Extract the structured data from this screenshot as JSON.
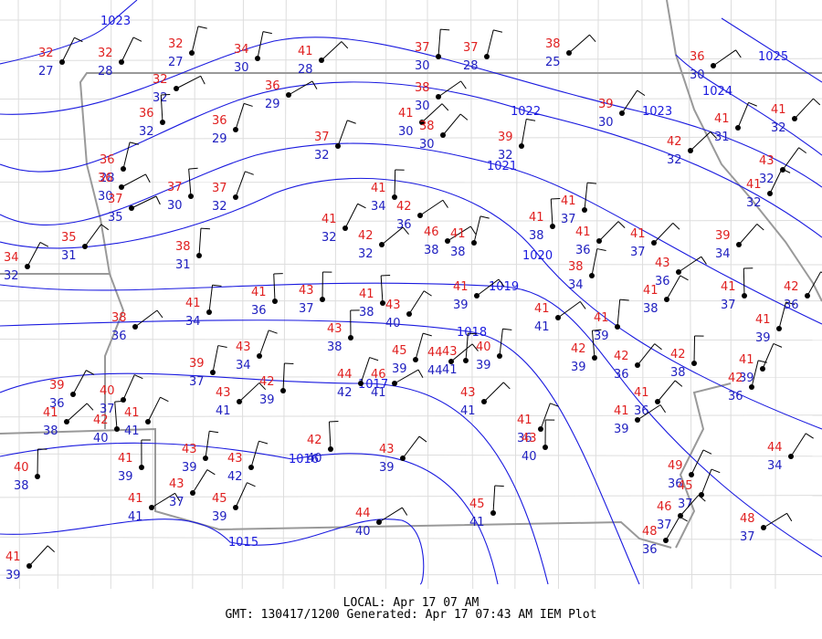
{
  "isobars": [
    {
      "label": "1023"
    },
    {
      "label": "1025"
    },
    {
      "label": "1024"
    },
    {
      "label": "1023"
    },
    {
      "label": "1022"
    },
    {
      "label": "1021"
    },
    {
      "label": "1020"
    },
    {
      "label": "1019"
    },
    {
      "label": "1018"
    },
    {
      "label": "1017"
    },
    {
      "label": "1016"
    },
    {
      "label": "1015"
    }
  ],
  "stations": [
    {
      "temp": 32,
      "dew": 27
    },
    {
      "temp": 32,
      "dew": 28
    },
    {
      "temp": 32,
      "dew": 27
    },
    {
      "temp": 34,
      "dew": 30
    },
    {
      "temp": 41,
      "dew": 28
    },
    {
      "temp": 37,
      "dew": 30
    },
    {
      "temp": 37,
      "dew": 28
    },
    {
      "temp": 38,
      "dew": 25
    },
    {
      "temp": 36,
      "dew": 30
    },
    {
      "temp": 32,
      "dew": 32
    },
    {
      "temp": 36,
      "dew": 29
    },
    {
      "temp": 38,
      "dew": 30
    },
    {
      "temp": 41,
      "dew": 30
    },
    {
      "temp": 38,
      "dew": 30
    },
    {
      "temp": 39,
      "dew": 30
    },
    {
      "temp": 36,
      "dew": 32
    },
    {
      "temp": 36,
      "dew": 29
    },
    {
      "temp": 37,
      "dew": 32
    },
    {
      "temp": 39,
      "dew": 32
    },
    {
      "temp": 41,
      "dew": 31
    },
    {
      "temp": 41,
      "dew": 32
    },
    {
      "temp": 42,
      "dew": 32
    },
    {
      "temp": 36,
      "dew": 28
    },
    {
      "temp": 36,
      "dew": 30
    },
    {
      "temp": 37,
      "dew": 30
    },
    {
      "temp": 37,
      "dew": 32
    },
    {
      "temp": 43,
      "dew": 32
    },
    {
      "temp": 41,
      "dew": 32
    },
    {
      "temp": 41,
      "dew": 34
    },
    {
      "temp": 37,
      "dew": 35
    },
    {
      "temp": 41,
      "dew": 32
    },
    {
      "temp": 42,
      "dew": 36
    },
    {
      "temp": 35,
      "dew": 31
    },
    {
      "temp": 34,
      "dew": 32
    },
    {
      "temp": 38,
      "dew": 31
    },
    {
      "temp": 42,
      "dew": 32
    },
    {
      "temp": 46,
      "dew": 38
    },
    {
      "temp": 41,
      "dew": 38
    },
    {
      "temp": 41,
      "dew": 38
    },
    {
      "temp": 41,
      "dew": 37
    },
    {
      "temp": 41,
      "dew": 36
    },
    {
      "temp": 41,
      "dew": 37
    },
    {
      "temp": 39,
      "dew": 34
    },
    {
      "temp": 43,
      "dew": 36
    },
    {
      "temp": 38,
      "dew": 34
    },
    {
      "temp": 41,
      "dew": 39
    },
    {
      "temp": 41,
      "dew": 34
    },
    {
      "temp": 41,
      "dew": 36
    },
    {
      "temp": 43,
      "dew": 37
    },
    {
      "temp": 41,
      "dew": 38
    },
    {
      "temp": 43,
      "dew": 40
    },
    {
      "temp": 38,
      "dew": 36
    },
    {
      "temp": 41,
      "dew": 41
    },
    {
      "temp": 41,
      "dew": 39
    },
    {
      "temp": 41,
      "dew": 38
    },
    {
      "temp": 41,
      "dew": 37
    },
    {
      "temp": 41,
      "dew": 39
    },
    {
      "temp": 42,
      "dew": 36
    },
    {
      "temp": 43,
      "dew": 38
    },
    {
      "temp": 43,
      "dew": 34
    },
    {
      "temp": 39,
      "dew": 37
    },
    {
      "temp": 45,
      "dew": 39
    },
    {
      "temp": 44,
      "dew": 44
    },
    {
      "temp": 43,
      "dew": 41
    },
    {
      "temp": 40,
      "dew": 39
    },
    {
      "temp": 42,
      "dew": 39
    },
    {
      "temp": 42,
      "dew": 36
    },
    {
      "temp": 42,
      "dew": 38
    },
    {
      "temp": 41,
      "dew": 39
    },
    {
      "temp": 42,
      "dew": 39
    },
    {
      "temp": 39,
      "dew": 36
    },
    {
      "temp": 40,
      "dew": 37
    },
    {
      "temp": 42,
      "dew": 40
    },
    {
      "temp": 41,
      "dew": 38
    },
    {
      "temp": 41,
      "dew": 41
    },
    {
      "temp": 43,
      "dew": 41
    },
    {
      "temp": 44,
      "dew": 42
    },
    {
      "temp": 46,
      "dew": 41
    },
    {
      "temp": 43,
      "dew": 41
    },
    {
      "temp": 41,
      "dew": 36
    },
    {
      "temp": 42,
      "dew": 36
    },
    {
      "temp": 41,
      "dew": 36
    },
    {
      "temp": 43,
      "dew": 40
    },
    {
      "temp": 41,
      "dew": 39
    },
    {
      "temp": 40,
      "dew": 38
    },
    {
      "temp": 41,
      "dew": 39
    },
    {
      "temp": 43,
      "dew": 39
    },
    {
      "temp": 43,
      "dew": 42
    },
    {
      "temp": 42,
      "dew": 40
    },
    {
      "temp": 43,
      "dew": 39
    },
    {
      "temp": 49,
      "dew": 36
    },
    {
      "temp": 45,
      "dew": 37
    },
    {
      "temp": 44,
      "dew": 34
    },
    {
      "temp": 41,
      "dew": 41
    },
    {
      "temp": 43,
      "dew": 37
    },
    {
      "temp": 45,
      "dew": 39
    },
    {
      "temp": 45,
      "dew": 41
    },
    {
      "temp": 44,
      "dew": 40
    },
    {
      "temp": 46,
      "dew": 37
    },
    {
      "temp": 48,
      "dew": 36
    },
    {
      "temp": 48,
      "dew": 37
    },
    {
      "temp": 41,
      "dew": 39
    }
  ],
  "footer": {
    "local": "LOCAL: Apr 17 07 AM",
    "gmt": "GMT: 130417/1200 Generated: Apr 17 07:43 AM IEM Plot"
  }
}
